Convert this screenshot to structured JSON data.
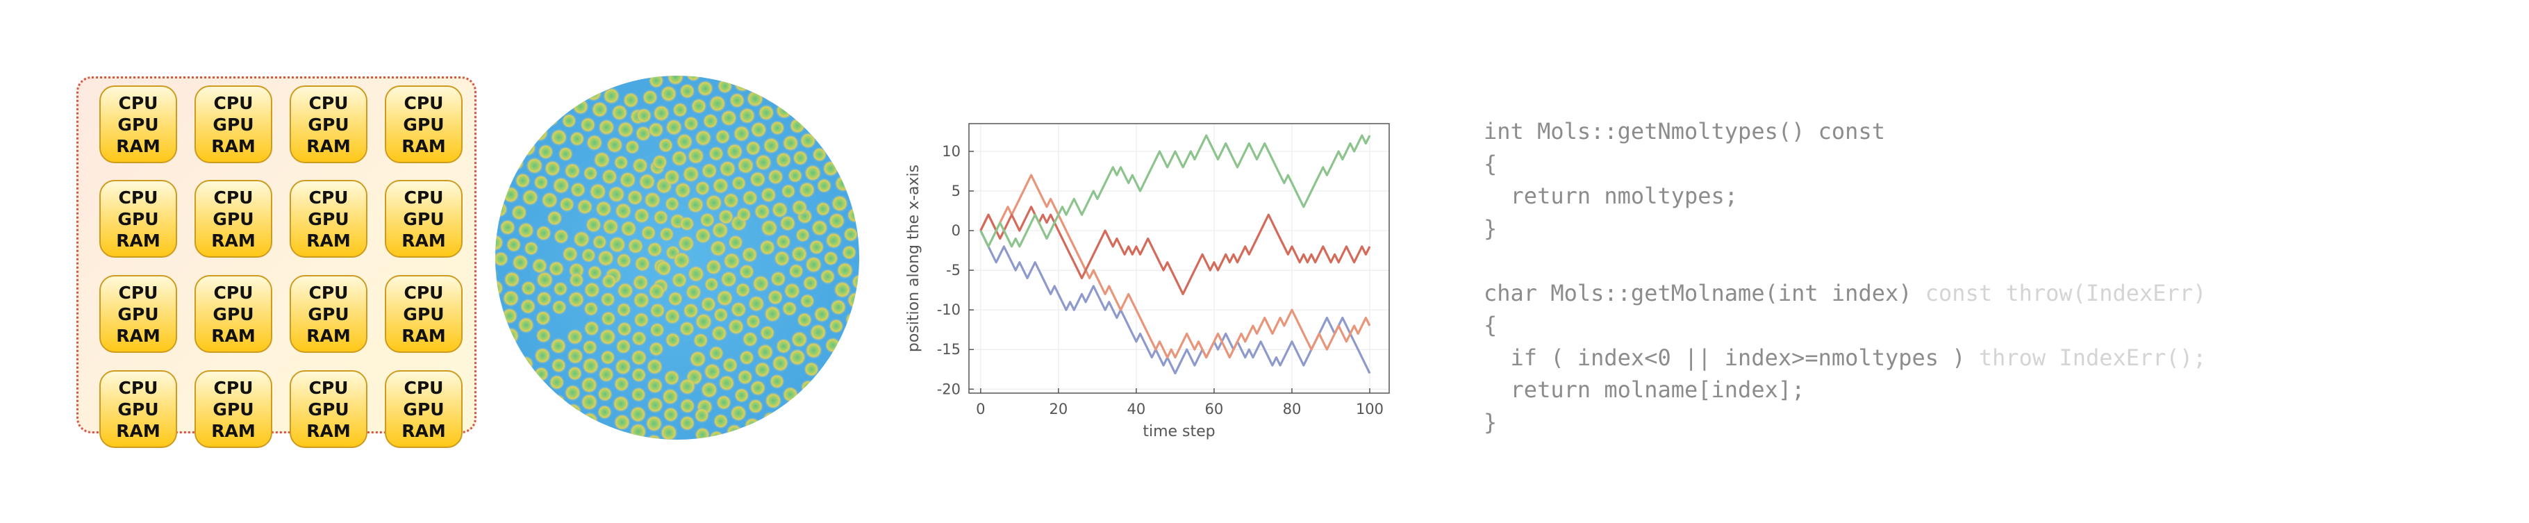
{
  "compute_grid": {
    "rows": 4,
    "cols": 4,
    "node_labels": [
      "CPU",
      "GPU",
      "RAM"
    ]
  },
  "simulation": {
    "description_colors": {
      "background": "#58b4e8",
      "particle_ring": "#e8d050",
      "particle_core": "#7ec87a"
    }
  },
  "chart_data": {
    "type": "line",
    "title": "",
    "xlabel": "time step",
    "ylabel": "position along the x-axis",
    "xlim": [
      -3,
      105
    ],
    "ylim": [
      -20.5,
      13.5
    ],
    "xticks": [
      0,
      20,
      40,
      60,
      80,
      100
    ],
    "yticks": [
      10,
      5,
      0,
      -5,
      -10,
      -15,
      -20
    ],
    "grid": true,
    "legend": "none",
    "series": [
      {
        "color": "#8e9acb",
        "values": [
          0,
          -1,
          -2,
          -3,
          -4,
          -3,
          -2,
          -3,
          -4,
          -5,
          -4,
          -5,
          -6,
          -5,
          -4,
          -5,
          -6,
          -7,
          -8,
          -7,
          -8,
          -9,
          -10,
          -9,
          -10,
          -9,
          -8,
          -9,
          -8,
          -7,
          -8,
          -9,
          -10,
          -9,
          -10,
          -11,
          -10,
          -11,
          -12,
          -13,
          -14,
          -13,
          -14,
          -15,
          -16,
          -15,
          -16,
          -17,
          -16,
          -17,
          -18,
          -17,
          -16,
          -15,
          -16,
          -17,
          -16,
          -15,
          -16,
          -15,
          -14,
          -15,
          -14,
          -13,
          -14,
          -15,
          -14,
          -15,
          -16,
          -15,
          -16,
          -15,
          -14,
          -15,
          -16,
          -17,
          -16,
          -17,
          -16,
          -15,
          -14,
          -15,
          -16,
          -17,
          -16,
          -15,
          -14,
          -13,
          -12,
          -11,
          -12,
          -13,
          -12,
          -11,
          -12,
          -13,
          -14,
          -15,
          -16,
          -17,
          -18
        ]
      },
      {
        "color": "#e8957a",
        "values": [
          0,
          1,
          2,
          1,
          0,
          1,
          2,
          3,
          2,
          3,
          4,
          5,
          6,
          7,
          6,
          5,
          4,
          3,
          4,
          3,
          2,
          1,
          0,
          -1,
          -2,
          -3,
          -4,
          -5,
          -6,
          -5,
          -6,
          -7,
          -8,
          -7,
          -8,
          -9,
          -10,
          -9,
          -8,
          -9,
          -10,
          -11,
          -12,
          -13,
          -14,
          -15,
          -14,
          -15,
          -16,
          -15,
          -16,
          -15,
          -14,
          -13,
          -14,
          -15,
          -14,
          -15,
          -16,
          -15,
          -14,
          -13,
          -14,
          -15,
          -16,
          -15,
          -14,
          -13,
          -14,
          -13,
          -12,
          -13,
          -12,
          -11,
          -12,
          -13,
          -12,
          -11,
          -12,
          -11,
          -10,
          -11,
          -12,
          -13,
          -14,
          -15,
          -14,
          -13,
          -14,
          -15,
          -14,
          -13,
          -12,
          -13,
          -14,
          -13,
          -12,
          -13,
          -12,
          -11,
          -12
        ]
      },
      {
        "color": "#d46a5a",
        "values": [
          0,
          1,
          2,
          1,
          0,
          -1,
          0,
          1,
          2,
          1,
          0,
          1,
          2,
          3,
          2,
          1,
          2,
          1,
          2,
          1,
          0,
          -1,
          -2,
          -3,
          -4,
          -5,
          -6,
          -5,
          -4,
          -3,
          -2,
          -1,
          0,
          -1,
          -2,
          -1,
          -2,
          -3,
          -2,
          -3,
          -2,
          -3,
          -2,
          -1,
          -2,
          -3,
          -4,
          -5,
          -4,
          -5,
          -6,
          -7,
          -8,
          -7,
          -6,
          -5,
          -4,
          -3,
          -4,
          -5,
          -4,
          -5,
          -4,
          -3,
          -4,
          -3,
          -4,
          -3,
          -2,
          -3,
          -2,
          -1,
          0,
          1,
          2,
          1,
          0,
          -1,
          -2,
          -3,
          -2,
          -3,
          -4,
          -3,
          -4,
          -3,
          -4,
          -3,
          -2,
          -3,
          -4,
          -3,
          -4,
          -3,
          -2,
          -3,
          -4,
          -3,
          -2,
          -3,
          -2
        ]
      },
      {
        "color": "#8dc48e",
        "values": [
          0,
          -1,
          -2,
          -1,
          0,
          1,
          0,
          -1,
          -2,
          -1,
          -2,
          -1,
          0,
          1,
          2,
          1,
          0,
          -1,
          0,
          1,
          2,
          3,
          2,
          3,
          4,
          3,
          2,
          3,
          4,
          5,
          4,
          5,
          6,
          7,
          8,
          7,
          8,
          7,
          6,
          7,
          6,
          5,
          6,
          7,
          8,
          9,
          10,
          9,
          8,
          9,
          10,
          9,
          8,
          9,
          10,
          9,
          10,
          11,
          12,
          11,
          10,
          9,
          10,
          11,
          10,
          9,
          8,
          9,
          10,
          11,
          10,
          9,
          10,
          11,
          10,
          9,
          8,
          7,
          6,
          7,
          6,
          5,
          4,
          3,
          4,
          5,
          6,
          7,
          8,
          7,
          8,
          9,
          10,
          9,
          10,
          11,
          10,
          11,
          12,
          11,
          12
        ]
      }
    ]
  },
  "code_listing": {
    "lines": [
      {
        "text": "int Mols::getNmoltypes() const",
        "style": "normal"
      },
      {
        "text": "{",
        "style": "normal"
      },
      {
        "text": "  return nmoltypes;",
        "style": "normal"
      },
      {
        "text": "}",
        "style": "normal"
      },
      {
        "text": "",
        "style": "normal"
      },
      {
        "text": "char Mols::getMolname(int index) ",
        "style": "normal",
        "suffix": "const throw(IndexErr)",
        "suffix_style": "faint"
      },
      {
        "text": "{",
        "style": "normal"
      },
      {
        "text": "  if ( index<0 || index>=nmoltypes ) ",
        "style": "normal",
        "suffix": "throw IndexErr();",
        "suffix_style": "faint"
      },
      {
        "text": "  return molname[index];",
        "style": "normal"
      },
      {
        "text": "}",
        "style": "normal"
      }
    ]
  }
}
